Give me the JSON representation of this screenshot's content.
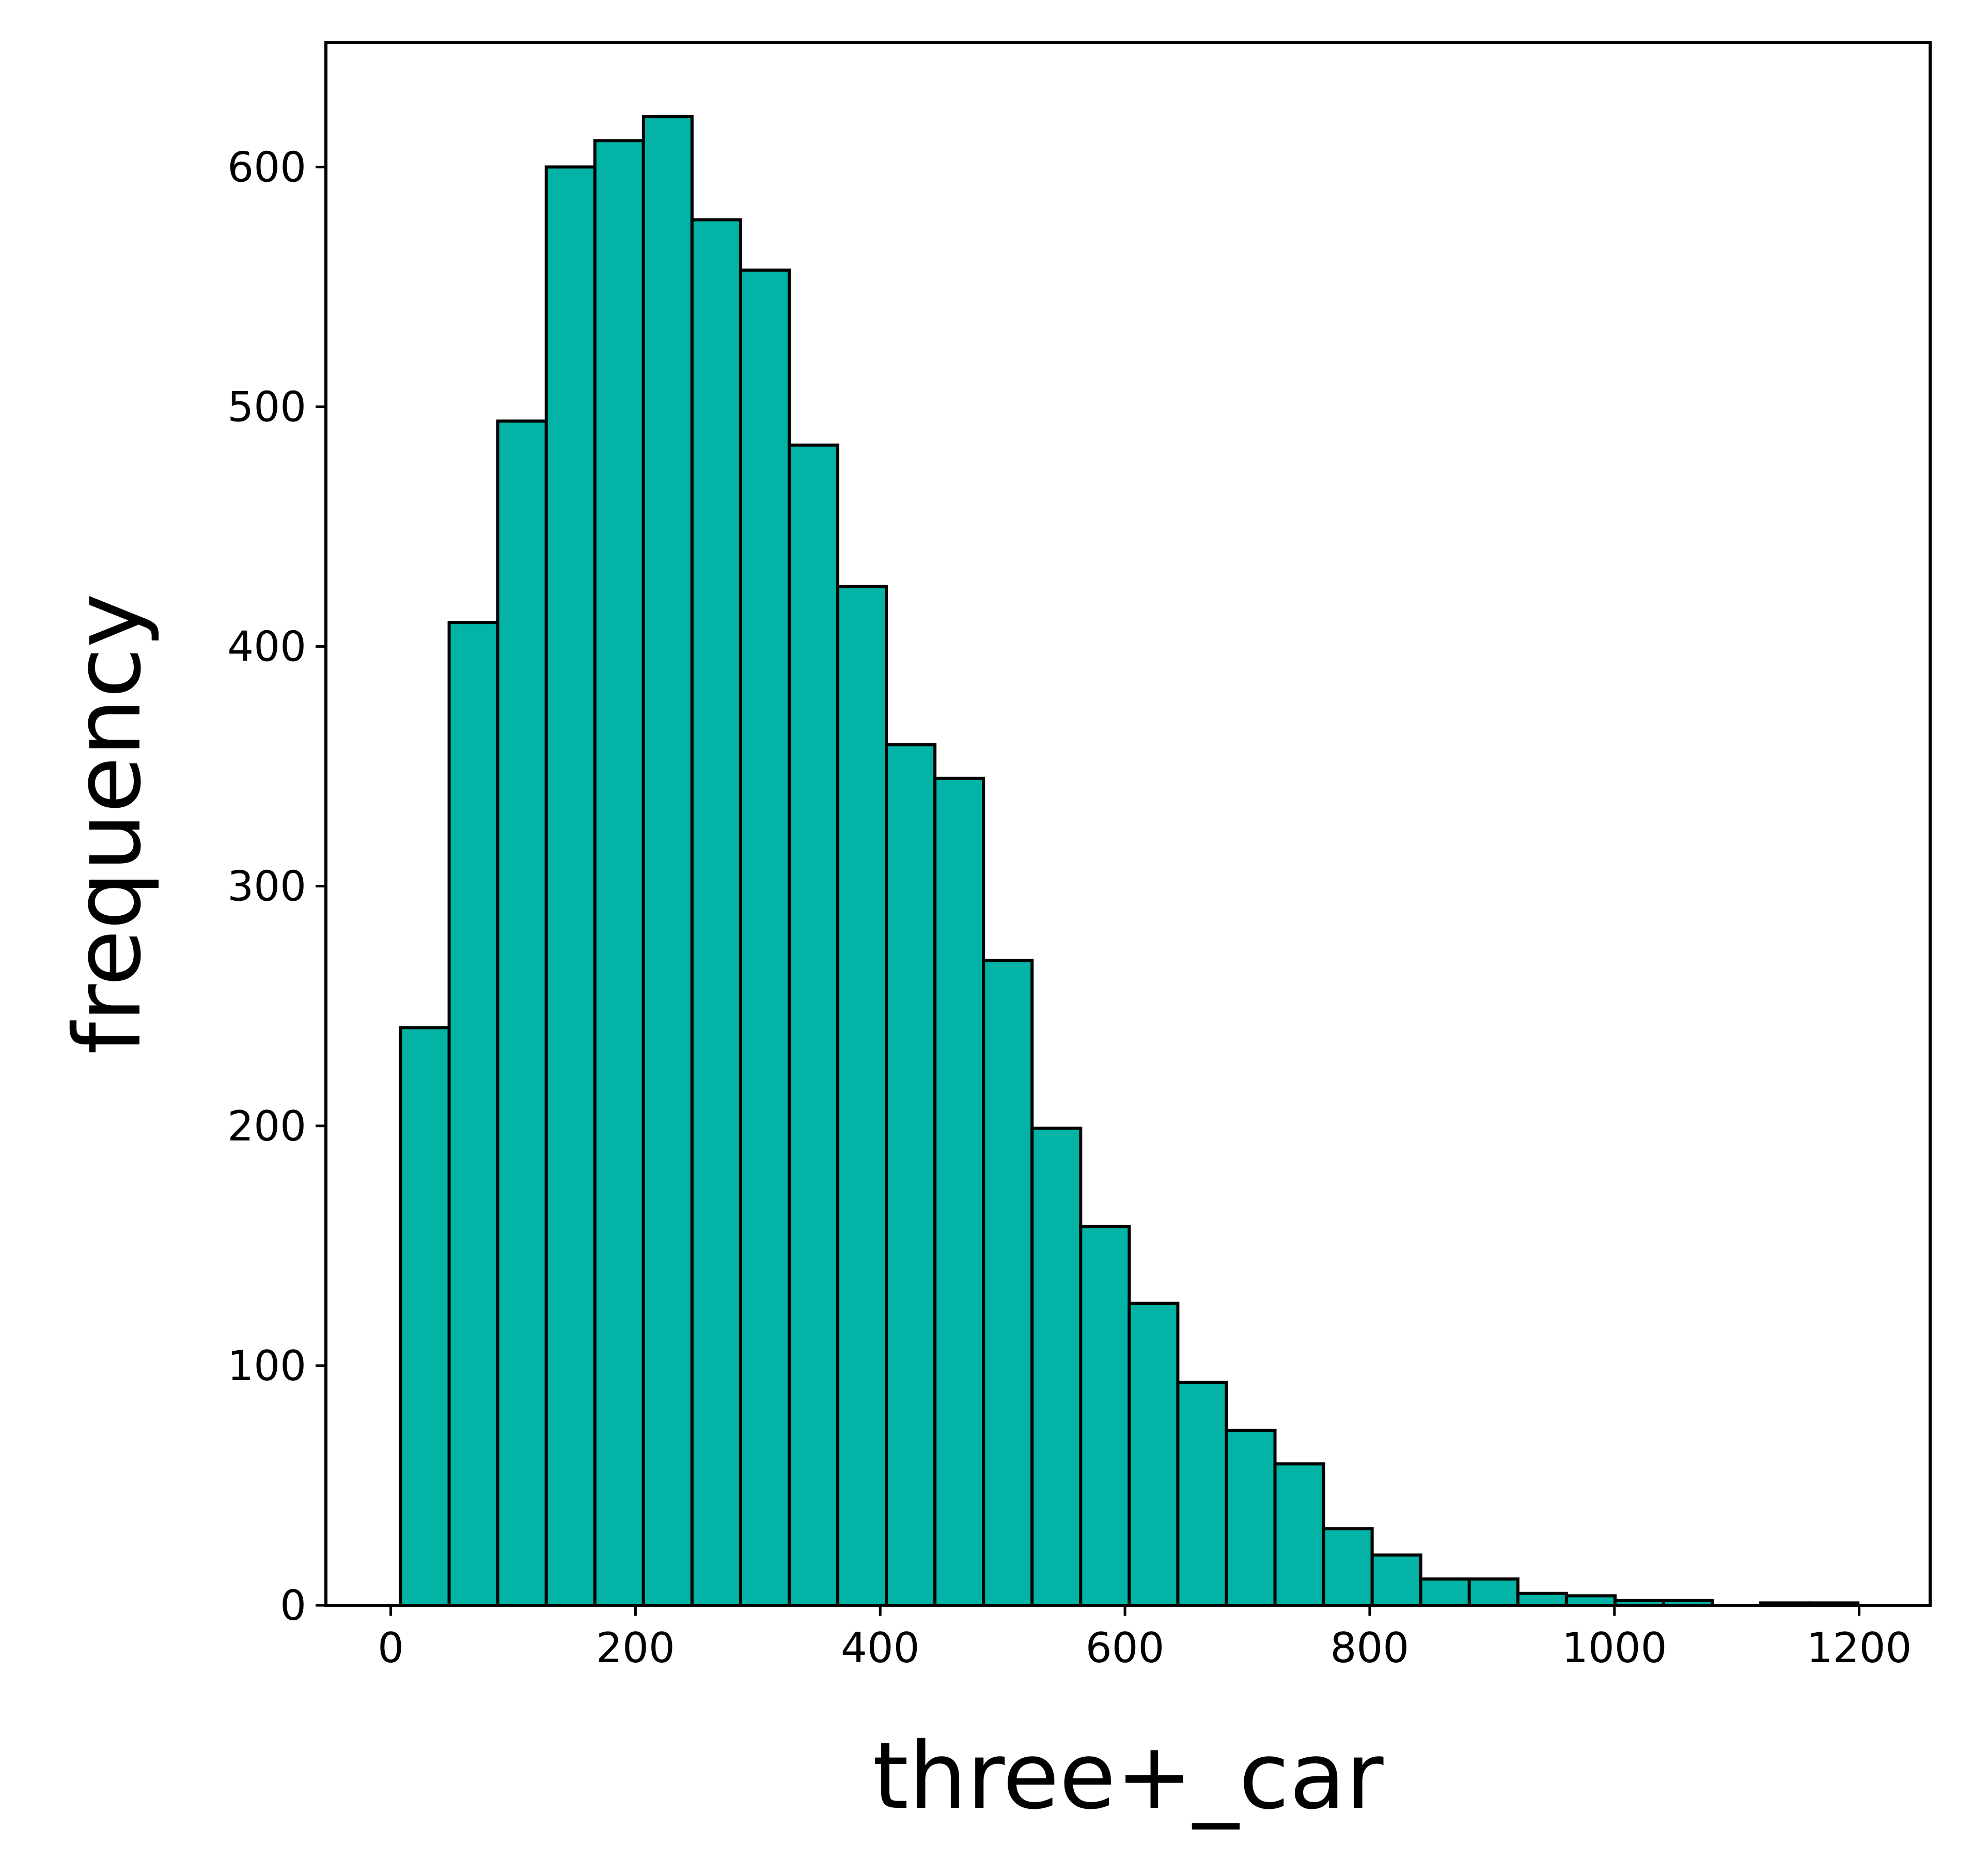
{
  "chart_data": {
    "type": "bar",
    "title": "",
    "xlabel": "three+_car",
    "ylabel": "frequency",
    "bin_width": 39.7,
    "bins": [
      {
        "x0": 8.0,
        "x1": 47.7,
        "value": 241
      },
      {
        "x0": 47.7,
        "x1": 87.4,
        "value": 410
      },
      {
        "x0": 87.4,
        "x1": 127.1,
        "value": 494
      },
      {
        "x0": 127.1,
        "x1": 166.8,
        "value": 600
      },
      {
        "x0": 166.8,
        "x1": 206.5,
        "value": 611
      },
      {
        "x0": 206.5,
        "x1": 246.2,
        "value": 621
      },
      {
        "x0": 246.2,
        "x1": 285.9,
        "value": 578
      },
      {
        "x0": 285.9,
        "x1": 325.6,
        "value": 557
      },
      {
        "x0": 325.6,
        "x1": 365.3,
        "value": 484
      },
      {
        "x0": 365.3,
        "x1": 405.0,
        "value": 425
      },
      {
        "x0": 405.0,
        "x1": 444.7,
        "value": 359
      },
      {
        "x0": 444.7,
        "x1": 484.4,
        "value": 345
      },
      {
        "x0": 484.4,
        "x1": 524.1,
        "value": 269
      },
      {
        "x0": 524.1,
        "x1": 563.8,
        "value": 199
      },
      {
        "x0": 563.8,
        "x1": 603.5,
        "value": 158
      },
      {
        "x0": 603.5,
        "x1": 643.2,
        "value": 126
      },
      {
        "x0": 643.2,
        "x1": 682.9,
        "value": 93
      },
      {
        "x0": 682.9,
        "x1": 722.6,
        "value": 73
      },
      {
        "x0": 722.6,
        "x1": 762.3,
        "value": 59
      },
      {
        "x0": 762.3,
        "x1": 802.0,
        "value": 32
      },
      {
        "x0": 802.0,
        "x1": 841.7,
        "value": 21
      },
      {
        "x0": 841.7,
        "x1": 881.4,
        "value": 11
      },
      {
        "x0": 881.4,
        "x1": 921.1,
        "value": 11
      },
      {
        "x0": 921.1,
        "x1": 960.8,
        "value": 5
      },
      {
        "x0": 960.8,
        "x1": 1000.5,
        "value": 4
      },
      {
        "x0": 1000.5,
        "x1": 1040.2,
        "value": 2
      },
      {
        "x0": 1040.2,
        "x1": 1079.9,
        "value": 2
      },
      {
        "x0": 1079.9,
        "x1": 1119.6,
        "value": 0
      },
      {
        "x0": 1119.6,
        "x1": 1159.3,
        "value": 1
      },
      {
        "x0": 1159.3,
        "x1": 1199.0,
        "value": 1
      }
    ],
    "xlim": [
      -53,
      1258
    ],
    "ylim": [
      0,
      652
    ],
    "xticks": [
      0,
      200,
      400,
      600,
      800,
      1000,
      1200
    ],
    "yticks": [
      0,
      100,
      200,
      300,
      400,
      500,
      600
    ],
    "bar_color": "#02b3a6",
    "edge_color": "#000000",
    "grid": false,
    "legend": "none"
  }
}
